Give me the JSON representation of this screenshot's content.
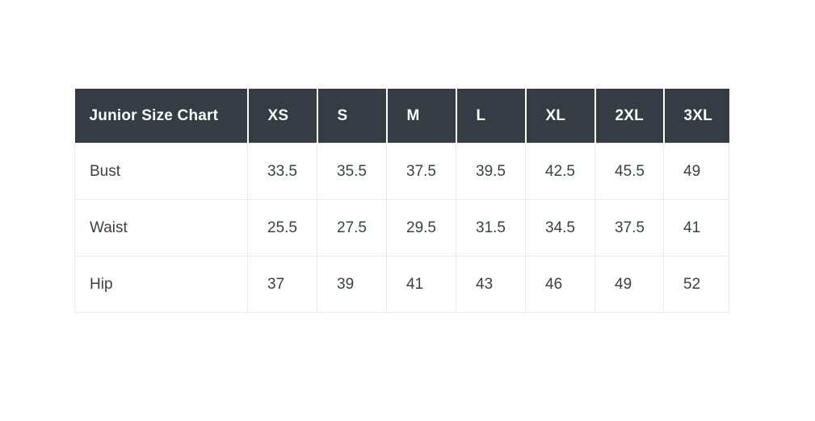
{
  "chart_data": {
    "type": "table",
    "title": "Junior Size Chart",
    "columns": [
      "XS",
      "S",
      "M",
      "L",
      "XL",
      "2XL",
      "3XL"
    ],
    "rows": [
      {
        "label": "Bust",
        "values": [
          "33.5",
          "35.5",
          "37.5",
          "39.5",
          "42.5",
          "45.5",
          "49"
        ]
      },
      {
        "label": "Waist",
        "values": [
          "25.5",
          "27.5",
          "29.5",
          "31.5",
          "34.5",
          "37.5",
          "41"
        ]
      },
      {
        "label": "Hip",
        "values": [
          "37",
          "39",
          "41",
          "43",
          "46",
          "49",
          "52"
        ]
      }
    ]
  },
  "colors": {
    "header_bg": "#363c44",
    "header_text": "#fbfbfb",
    "body_text": "#3b4046",
    "border": "#e8eaeb",
    "page_bg": "#ffffff"
  }
}
